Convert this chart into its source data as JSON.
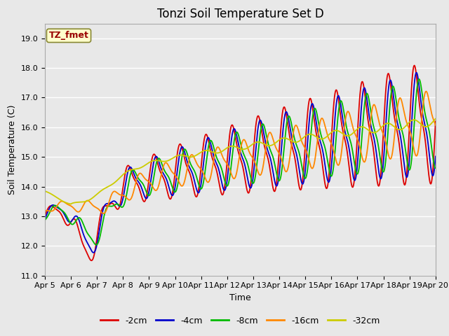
{
  "title": "Tonzi Soil Temperature Set D",
  "ylabel": "Soil Temperature (C)",
  "xlabel": "Time",
  "label_text": "TZ_fmet",
  "ylim": [
    11.0,
    19.5
  ],
  "yticks": [
    11.0,
    12.0,
    13.0,
    14.0,
    15.0,
    16.0,
    17.0,
    18.0,
    19.0
  ],
  "date_labels": [
    "Apr 5",
    "Apr 6",
    "Apr 7",
    "Apr 8",
    "Apr 9",
    "Apr 10",
    "Apr 11",
    "Apr 12",
    "Apr 13",
    "Apr 14",
    "Apr 15",
    "Apr 16",
    "Apr 17",
    "Apr 18",
    "Apr 19",
    "Apr 20"
  ],
  "series_labels": [
    "-2cm",
    "-4cm",
    "-8cm",
    "-16cm",
    "-32cm"
  ],
  "series_colors": [
    "#dd0000",
    "#0000cc",
    "#00bb00",
    "#ff8800",
    "#cccc00"
  ],
  "plot_bg_color": "#e8e8e8",
  "fig_bg_color": "#e8e8e8",
  "title_fontsize": 12,
  "axis_fontsize": 9,
  "tick_fontsize": 8
}
